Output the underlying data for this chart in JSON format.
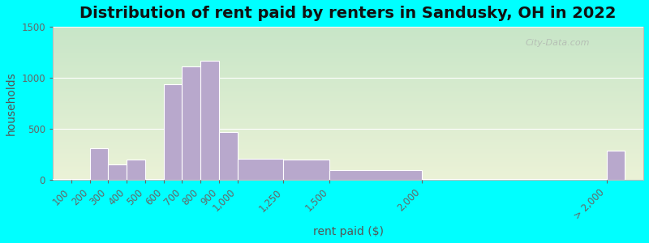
{
  "title": "Distribution of rent paid by renters in Sandusky, OH in 2022",
  "xlabel": "rent paid ($)",
  "ylabel": "households",
  "background_color": "#00FFFF",
  "bar_color": "#b8a8cc",
  "watermark": "City-Data.com",
  "bar_edges": [
    0,
    100,
    200,
    300,
    400,
    500,
    600,
    700,
    800,
    900,
    1000,
    1250,
    1500,
    2000,
    3000
  ],
  "bar_heights": [
    10,
    10,
    310,
    150,
    200,
    10,
    940,
    1115,
    1165,
    465,
    205,
    200,
    95,
    10,
    285
  ],
  "xtick_positions": [
    100,
    200,
    300,
    400,
    500,
    600,
    700,
    800,
    900,
    1000,
    1250,
    1500,
    2000,
    3000
  ],
  "xtick_labels": [
    "100",
    "200",
    "300",
    "400",
    "500",
    "600",
    "700",
    "800",
    "900",
    "1,000",
    "1,250",
    "1,500",
    "2,000",
    "> 2,000"
  ],
  "ylim": [
    0,
    1500
  ],
  "xlim": [
    0,
    3200
  ],
  "yticks": [
    0,
    500,
    1000,
    1500
  ],
  "title_fontsize": 14,
  "axis_label_fontsize": 10,
  "tick_fontsize": 8.5
}
